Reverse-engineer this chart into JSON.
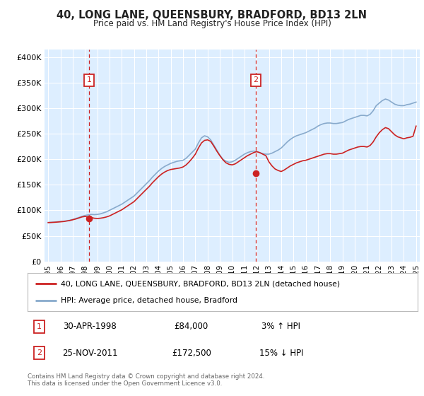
{
  "title": "40, LONG LANE, QUEENSBURY, BRADFORD, BD13 2LN",
  "subtitle": "Price paid vs. HM Land Registry's House Price Index (HPI)",
  "ylabel_ticks": [
    "£0",
    "£50K",
    "£100K",
    "£150K",
    "£200K",
    "£250K",
    "£300K",
    "£350K",
    "£400K"
  ],
  "ytick_vals": [
    0,
    50000,
    100000,
    150000,
    200000,
    250000,
    300000,
    350000,
    400000
  ],
  "ylim": [
    0,
    415000
  ],
  "xlim_start": 1994.7,
  "xlim_end": 2025.3,
  "xtick_years": [
    1995,
    1996,
    1997,
    1998,
    1999,
    2000,
    2001,
    2002,
    2003,
    2004,
    2005,
    2006,
    2007,
    2008,
    2009,
    2010,
    2011,
    2012,
    2013,
    2014,
    2015,
    2016,
    2017,
    2018,
    2019,
    2020,
    2021,
    2022,
    2023,
    2024,
    2025
  ],
  "purchase1_x": 1998.33,
  "purchase1_y": 84000,
  "purchase1_label": "1",
  "purchase2_x": 2011.92,
  "purchase2_y": 172500,
  "purchase2_label": "2",
  "line_color_red": "#cc2222",
  "line_color_blue": "#88aacc",
  "background_color": "#ddeeff",
  "grid_color": "#ffffff",
  "marker_box_color": "#cc2222",
  "legend_label_red": "40, LONG LANE, QUEENSBURY, BRADFORD, BD13 2LN (detached house)",
  "legend_label_blue": "HPI: Average price, detached house, Bradford",
  "annotation1_num": "1",
  "annotation1_date": "30-APR-1998",
  "annotation1_price": "£84,000",
  "annotation1_hpi": "3% ↑ HPI",
  "annotation2_num": "2",
  "annotation2_date": "25-NOV-2011",
  "annotation2_price": "£172,500",
  "annotation2_hpi": "15% ↓ HPI",
  "footer": "Contains HM Land Registry data © Crown copyright and database right 2024.\nThis data is licensed under the Open Government Licence v3.0.",
  "hpi_x": [
    1995.0,
    1995.25,
    1995.5,
    1995.75,
    1996.0,
    1996.25,
    1996.5,
    1996.75,
    1997.0,
    1997.25,
    1997.5,
    1997.75,
    1998.0,
    1998.25,
    1998.5,
    1998.75,
    1999.0,
    1999.25,
    1999.5,
    1999.75,
    2000.0,
    2000.25,
    2000.5,
    2000.75,
    2001.0,
    2001.25,
    2001.5,
    2001.75,
    2002.0,
    2002.25,
    2002.5,
    2002.75,
    2003.0,
    2003.25,
    2003.5,
    2003.75,
    2004.0,
    2004.25,
    2004.5,
    2004.75,
    2005.0,
    2005.25,
    2005.5,
    2005.75,
    2006.0,
    2006.25,
    2006.5,
    2006.75,
    2007.0,
    2007.25,
    2007.5,
    2007.75,
    2008.0,
    2008.25,
    2008.5,
    2008.75,
    2009.0,
    2009.25,
    2009.5,
    2009.75,
    2010.0,
    2010.25,
    2010.5,
    2010.75,
    2011.0,
    2011.25,
    2011.5,
    2011.75,
    2012.0,
    2012.25,
    2012.5,
    2012.75,
    2013.0,
    2013.25,
    2013.5,
    2013.75,
    2014.0,
    2014.25,
    2014.5,
    2014.75,
    2015.0,
    2015.25,
    2015.5,
    2015.75,
    2016.0,
    2016.25,
    2016.5,
    2016.75,
    2017.0,
    2017.25,
    2017.5,
    2017.75,
    2018.0,
    2018.25,
    2018.5,
    2018.75,
    2019.0,
    2019.25,
    2019.5,
    2019.75,
    2020.0,
    2020.25,
    2020.5,
    2020.75,
    2021.0,
    2021.25,
    2021.5,
    2021.75,
    2022.0,
    2022.25,
    2022.5,
    2022.75,
    2023.0,
    2023.25,
    2023.5,
    2023.75,
    2024.0,
    2024.25,
    2024.5,
    2024.75,
    2025.0
  ],
  "hpi_y": [
    76000,
    76500,
    77000,
    77500,
    78000,
    78500,
    79500,
    80500,
    82000,
    84000,
    86000,
    88000,
    90000,
    91000,
    92000,
    91500,
    92000,
    93000,
    95000,
    97000,
    100000,
    103000,
    106000,
    109000,
    112000,
    116000,
    120000,
    124000,
    128000,
    134000,
    140000,
    146000,
    152000,
    158000,
    165000,
    171000,
    177000,
    182000,
    186000,
    189000,
    192000,
    194000,
    196000,
    197000,
    198000,
    202000,
    208000,
    214000,
    220000,
    232000,
    242000,
    246000,
    244000,
    238000,
    228000,
    218000,
    208000,
    200000,
    196000,
    194000,
    195000,
    198000,
    202000,
    206000,
    210000,
    213000,
    215000,
    216000,
    215000,
    213000,
    211000,
    210000,
    210000,
    212000,
    215000,
    218000,
    222000,
    228000,
    234000,
    239000,
    243000,
    246000,
    248000,
    250000,
    252000,
    255000,
    258000,
    261000,
    265000,
    268000,
    270000,
    271000,
    271000,
    270000,
    270000,
    271000,
    272000,
    275000,
    278000,
    280000,
    282000,
    284000,
    286000,
    286000,
    285000,
    288000,
    295000,
    305000,
    310000,
    315000,
    318000,
    316000,
    312000,
    308000,
    306000,
    305000,
    305000,
    307000,
    308000,
    310000,
    312000
  ],
  "red_x": [
    1995.0,
    1995.25,
    1995.5,
    1995.75,
    1996.0,
    1996.25,
    1996.5,
    1996.75,
    1997.0,
    1997.25,
    1997.5,
    1997.75,
    1998.0,
    1998.25,
    1998.5,
    1998.75,
    1999.0,
    1999.25,
    1999.5,
    1999.75,
    2000.0,
    2000.25,
    2000.5,
    2000.75,
    2001.0,
    2001.25,
    2001.5,
    2001.75,
    2002.0,
    2002.25,
    2002.5,
    2002.75,
    2003.0,
    2003.25,
    2003.5,
    2003.75,
    2004.0,
    2004.25,
    2004.5,
    2004.75,
    2005.0,
    2005.25,
    2005.5,
    2005.75,
    2006.0,
    2006.25,
    2006.5,
    2006.75,
    2007.0,
    2007.25,
    2007.5,
    2007.75,
    2008.0,
    2008.25,
    2008.5,
    2008.75,
    2009.0,
    2009.25,
    2009.5,
    2009.75,
    2010.0,
    2010.25,
    2010.5,
    2010.75,
    2011.0,
    2011.25,
    2011.5,
    2011.75,
    2012.0,
    2012.25,
    2012.5,
    2012.75,
    2013.0,
    2013.25,
    2013.5,
    2013.75,
    2014.0,
    2014.25,
    2014.5,
    2014.75,
    2015.0,
    2015.25,
    2015.5,
    2015.75,
    2016.0,
    2016.25,
    2016.5,
    2016.75,
    2017.0,
    2017.25,
    2017.5,
    2017.75,
    2018.0,
    2018.25,
    2018.5,
    2018.75,
    2019.0,
    2019.25,
    2019.5,
    2019.75,
    2020.0,
    2020.25,
    2020.5,
    2020.75,
    2021.0,
    2021.25,
    2021.5,
    2021.75,
    2022.0,
    2022.25,
    2022.5,
    2022.75,
    2023.0,
    2023.25,
    2023.5,
    2023.75,
    2024.0,
    2024.25,
    2024.5,
    2024.75,
    2025.0
  ],
  "red_y": [
    76000,
    76200,
    76500,
    77000,
    77500,
    78000,
    79000,
    80000,
    81500,
    83000,
    85000,
    87000,
    88000,
    87000,
    86000,
    84500,
    84000,
    84500,
    85500,
    87000,
    89000,
    92000,
    95000,
    98000,
    101000,
    105000,
    109000,
    113000,
    117000,
    123000,
    129000,
    135000,
    141000,
    147000,
    154000,
    160000,
    166000,
    171000,
    175000,
    178000,
    180000,
    181000,
    182000,
    183000,
    185000,
    189000,
    195000,
    202000,
    210000,
    222000,
    232000,
    237000,
    238000,
    235000,
    226000,
    216000,
    207000,
    199000,
    193000,
    190000,
    189000,
    191000,
    195000,
    199000,
    203000,
    207000,
    210000,
    213000,
    215000,
    213000,
    210000,
    207000,
    195000,
    187000,
    181000,
    178000,
    176000,
    179000,
    183000,
    187000,
    190000,
    193000,
    195000,
    197000,
    198000,
    200000,
    202000,
    204000,
    206000,
    208000,
    210000,
    211000,
    211000,
    210000,
    210000,
    211000,
    212000,
    215000,
    218000,
    220000,
    222000,
    224000,
    225000,
    225000,
    224000,
    227000,
    234000,
    244000,
    252000,
    258000,
    262000,
    260000,
    254000,
    248000,
    244000,
    242000,
    240000,
    242000,
    243000,
    245000,
    265000
  ]
}
